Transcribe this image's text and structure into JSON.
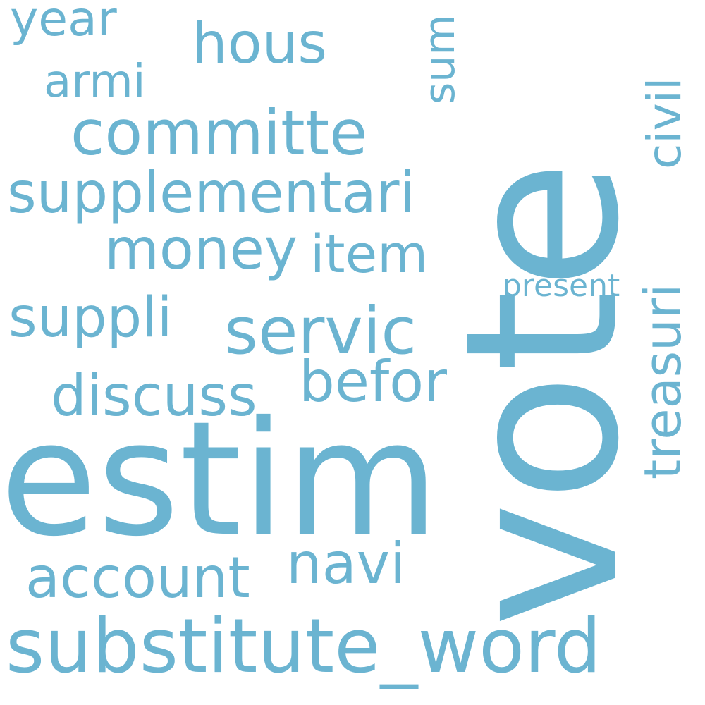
{
  "word_cloud": {
    "color": "#6bb4d1",
    "words": {
      "vote": "vote",
      "estim": "estim",
      "substitute_word": "substitute_word",
      "supplementari": "supplementari",
      "committe": "committe",
      "servic": "servic",
      "account": "account",
      "discuss": "discuss",
      "suppli": "suppli",
      "money": "money",
      "befor": "befor",
      "item": "item",
      "navi": "navi",
      "hous": "hous",
      "year": "year",
      "armi": "armi",
      "sum": "sum",
      "civil": "civil",
      "treasuri": "treasuri",
      "present": "present"
    }
  }
}
